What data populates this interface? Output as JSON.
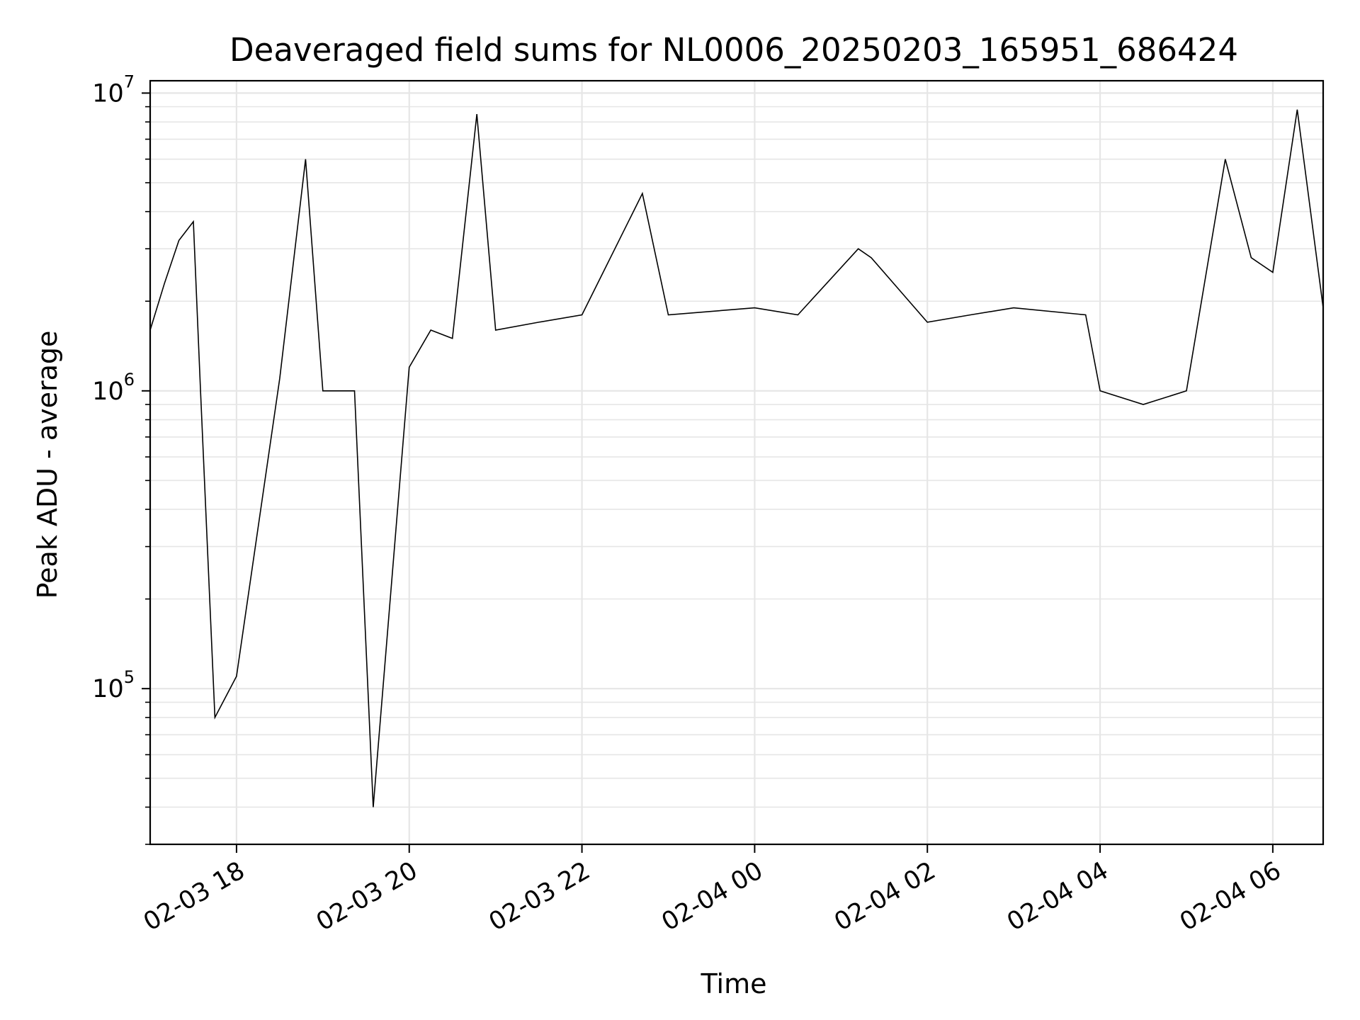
{
  "chart_data": {
    "type": "line",
    "title": "Deaveraged field sums for NL0006_20250203_165951_686424",
    "xlabel": "Time",
    "ylabel": "Peak ADU - average",
    "yscale": "log",
    "ylim": [
      30000,
      11000000
    ],
    "xlim": [
      "2025-02-03 17:00",
      "2025-02-04 06:35"
    ],
    "grid": true,
    "line_color": "#000000",
    "grid_color": "#e6e6e6",
    "x_ticks": [
      {
        "value": "2025-02-03 18:00",
        "label": "02-03 18"
      },
      {
        "value": "2025-02-03 20:00",
        "label": "02-03 20"
      },
      {
        "value": "2025-02-03 22:00",
        "label": "02-03 22"
      },
      {
        "value": "2025-02-04 00:00",
        "label": "02-04 00"
      },
      {
        "value": "2025-02-04 02:00",
        "label": "02-04 02"
      },
      {
        "value": "2025-02-04 04:00",
        "label": "02-04 04"
      },
      {
        "value": "2025-02-04 06:00",
        "label": "02-04 06"
      }
    ],
    "y_ticks": [
      {
        "value": 100000,
        "base": "10",
        "exp": "5"
      },
      {
        "value": 1000000,
        "base": "10",
        "exp": "6"
      },
      {
        "value": 10000000,
        "base": "10",
        "exp": "7"
      }
    ],
    "series": [
      {
        "x": [
          "2025-02-03 17:00",
          "2025-02-03 17:10",
          "2025-02-03 17:20",
          "2025-02-03 17:30",
          "2025-02-03 17:35",
          "2025-02-03 17:45",
          "2025-02-03 18:00",
          "2025-02-03 18:30",
          "2025-02-03 18:48",
          "2025-02-03 19:00",
          "2025-02-03 19:22",
          "2025-02-03 19:35",
          "2025-02-03 20:00",
          "2025-02-03 20:15",
          "2025-02-03 20:30",
          "2025-02-03 20:47",
          "2025-02-03 21:00",
          "2025-02-03 21:30",
          "2025-02-03 22:00",
          "2025-02-03 22:42",
          "2025-02-03 23:00",
          "2025-02-04 00:00",
          "2025-02-04 00:30",
          "2025-02-04 01:12",
          "2025-02-04 01:21",
          "2025-02-04 02:00",
          "2025-02-04 02:30",
          "2025-02-04 03:00",
          "2025-02-04 03:50",
          "2025-02-04 04:00",
          "2025-02-04 04:30",
          "2025-02-04 05:00",
          "2025-02-04 05:27",
          "2025-02-04 05:45",
          "2025-02-04 06:00",
          "2025-02-04 06:17",
          "2025-02-04 06:35"
        ],
        "y": [
          1600000,
          2300000,
          3200000,
          3700000,
          1000000,
          80000,
          110000,
          1100000,
          6000000,
          1000000,
          1000000,
          40000,
          1200000,
          1600000,
          1500000,
          8500000,
          1600000,
          1700000,
          1800000,
          4600000,
          1800000,
          1900000,
          1800000,
          3000000,
          2800000,
          1700000,
          1800000,
          1900000,
          1800000,
          1000000,
          900000,
          1000000,
          6000000,
          2800000,
          2500000,
          8800000,
          1900000
        ]
      }
    ]
  }
}
